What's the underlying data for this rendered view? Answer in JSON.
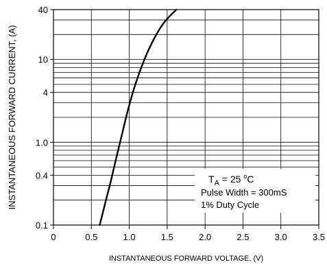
{
  "chart_data": {
    "type": "line",
    "xlabel": "INSTANTANEOUS FORWARD VOLTAGE, (V)",
    "ylabel": "INSTANTANEOUS FORWARD CURRENT, (A)",
    "xlim": [
      0,
      3.5
    ],
    "ylim": [
      0.1,
      40
    ],
    "y_scale": "log",
    "grid": true,
    "x_ticks": [
      {
        "value": 0,
        "label": "0"
      },
      {
        "value": 0.5,
        "label": "0.5"
      },
      {
        "value": 1.0,
        "label": "1.0"
      },
      {
        "value": 1.5,
        "label": "1.5"
      },
      {
        "value": 2.0,
        "label": "2.0"
      },
      {
        "value": 2.5,
        "label": "2.5"
      },
      {
        "value": 3.0,
        "label": "3.0"
      },
      {
        "value": 3.5,
        "label": "3.5"
      }
    ],
    "y_ticks": [
      {
        "value": 0.1,
        "label": "0.1"
      },
      {
        "value": 0.4,
        "label": "0.4"
      },
      {
        "value": 1.0,
        "label": "1.0"
      },
      {
        "value": 4,
        "label": "4"
      },
      {
        "value": 10,
        "label": "10"
      },
      {
        "value": 40,
        "label": "40"
      }
    ],
    "y_gridlines": [
      0.2,
      0.3,
      0.4,
      0.5,
      0.6,
      0.7,
      0.8,
      0.9,
      1,
      2,
      3,
      4,
      5,
      6,
      7,
      8,
      9,
      10,
      20,
      30
    ],
    "series": [
      {
        "x": [
          0.61,
          0.68,
          0.75,
          0.82,
          0.9,
          0.98,
          1.08,
          1.2,
          1.33,
          1.46,
          1.62
        ],
        "y": [
          0.1,
          0.18,
          0.32,
          0.6,
          1.2,
          2.4,
          5.0,
          10,
          18,
          28,
          40
        ]
      }
    ],
    "annotation": {
      "ta_prefix": "T",
      "ta_subscript": "A",
      "ta_value": " = 25 ",
      "ta_degree": "o",
      "ta_unit": "C",
      "line2": "Pulse Width = 300mS",
      "line3": "1% Duty Cycle"
    },
    "colors": {
      "curve": "#000000",
      "grid": "#000000",
      "background": "#ffffff"
    }
  }
}
